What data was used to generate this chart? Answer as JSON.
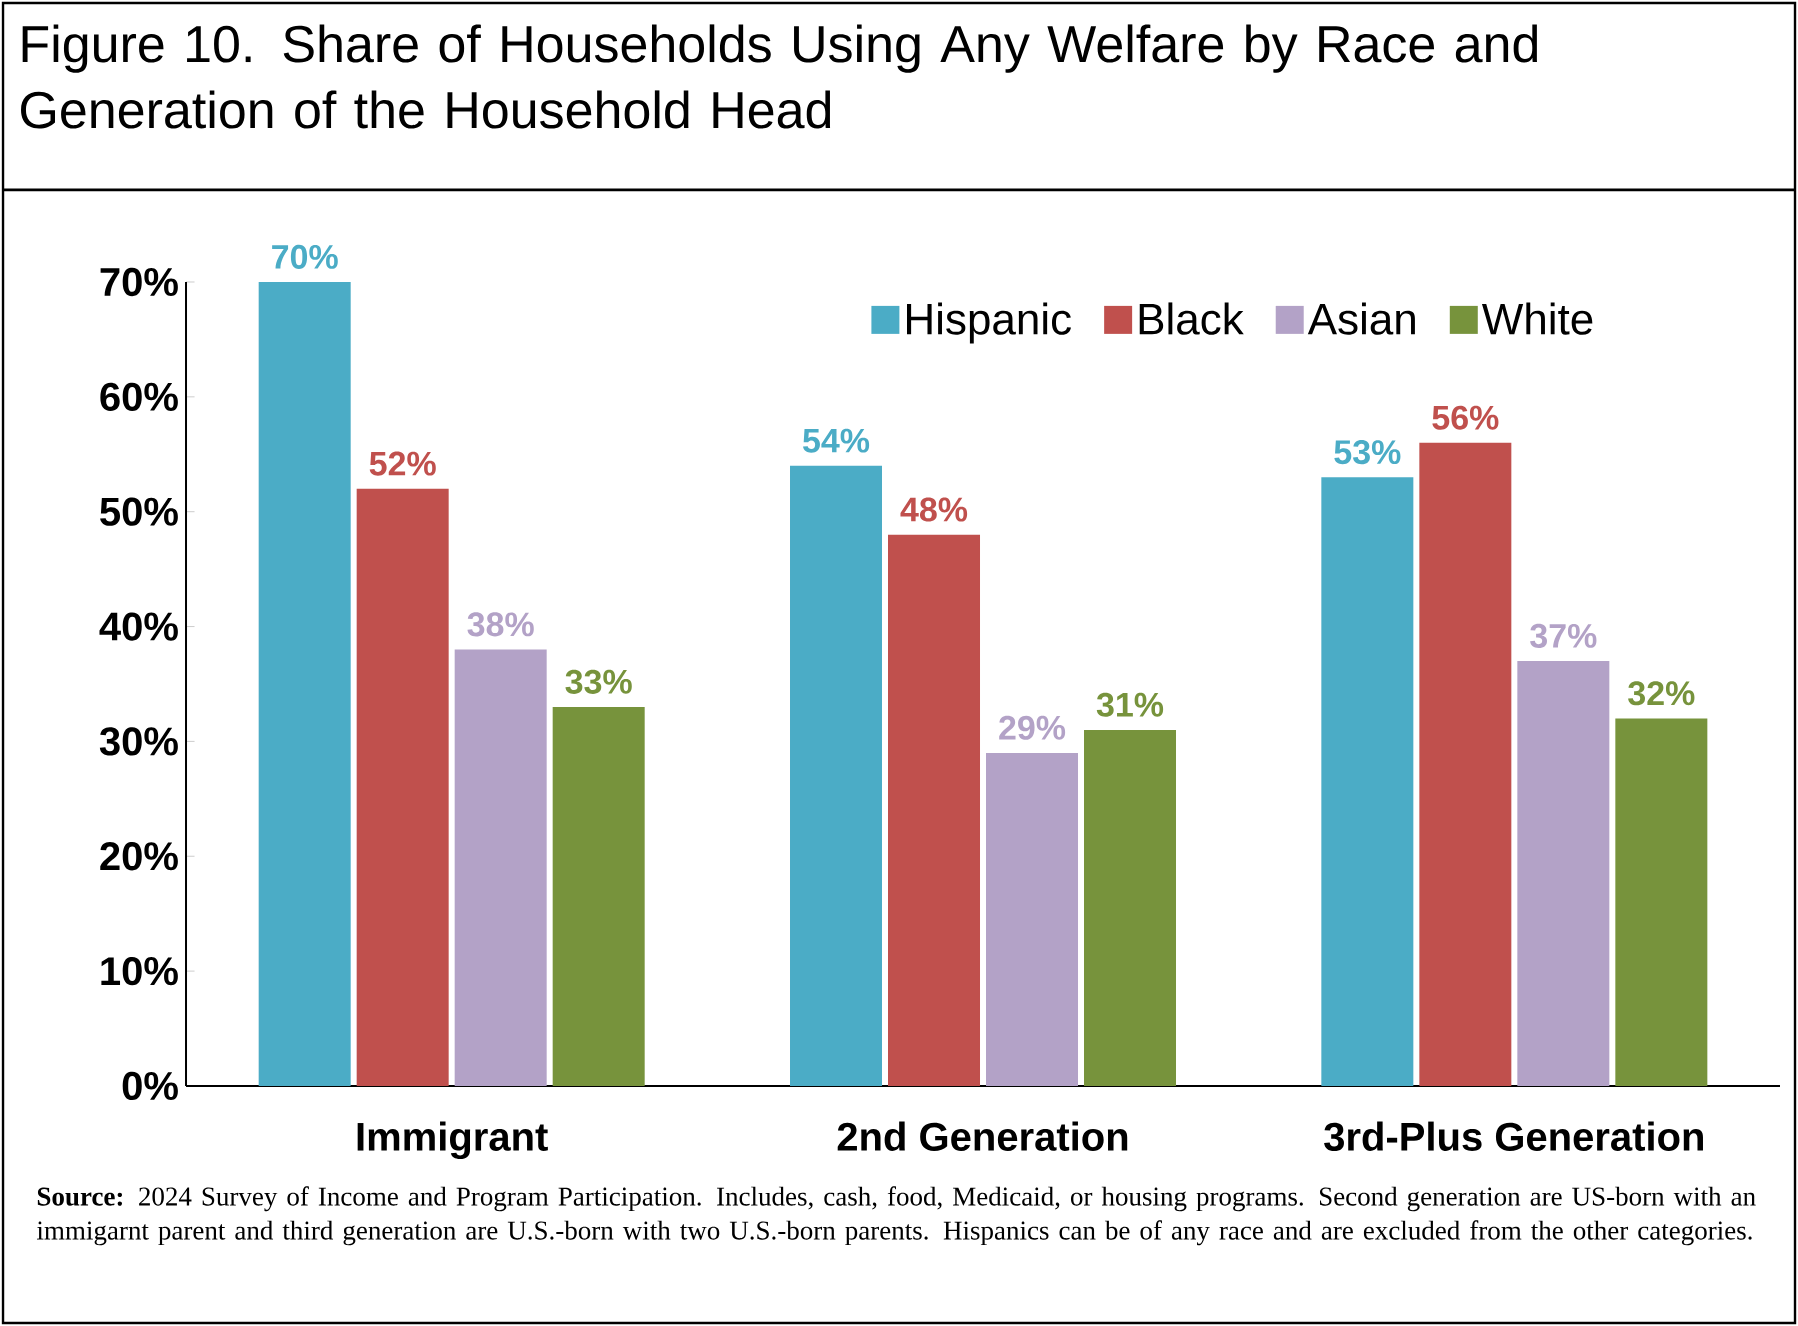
{
  "chart_data": {
    "type": "bar",
    "title": "Figure 10. Share of Households Using Any Welfare by Race and Generation of the Household Head",
    "categories": [
      "Immigrant",
      "2nd Generation",
      "3rd-Plus Generation"
    ],
    "series": [
      {
        "name": "Hispanic",
        "color": "#4bacc6",
        "values": [
          70,
          54,
          53
        ],
        "value_labels": [
          "70%",
          "54%",
          "53%"
        ]
      },
      {
        "name": "Black",
        "color": "#c0504d",
        "values": [
          52,
          48,
          56
        ],
        "value_labels": [
          "52%",
          "48%",
          "56%"
        ]
      },
      {
        "name": "Asian",
        "color": "#b3a2c7",
        "values": [
          38,
          29,
          37
        ],
        "value_labels": [
          "38%",
          "29%",
          "37%"
        ]
      },
      {
        "name": "White",
        "color": "#77933c",
        "values": [
          33,
          31,
          32
        ],
        "value_labels": [
          "33%",
          "31%",
          "32%"
        ]
      }
    ],
    "ylim": [
      0,
      70
    ],
    "yticks": [
      {
        "value": 0,
        "label": "0%"
      },
      {
        "value": 10,
        "label": "10%"
      },
      {
        "value": 20,
        "label": "20%"
      },
      {
        "value": 30,
        "label": "30%"
      },
      {
        "value": 40,
        "label": "40%"
      },
      {
        "value": 50,
        "label": "50%"
      },
      {
        "value": 60,
        "label": "60%"
      },
      {
        "value": 70,
        "label": "70%"
      }
    ],
    "legend": "top right",
    "annotations": [
      "**Source:** 2024 Survey of Income and Program Participation.  Includes, cash, food, Medicaid, or housing programs.  Second generation are US-born with an immigarnt parent and third generation are U.S.-born with two U.S.-born parents. Hispanics can be of any race and are excluded from the other categories."
    ]
  }
}
